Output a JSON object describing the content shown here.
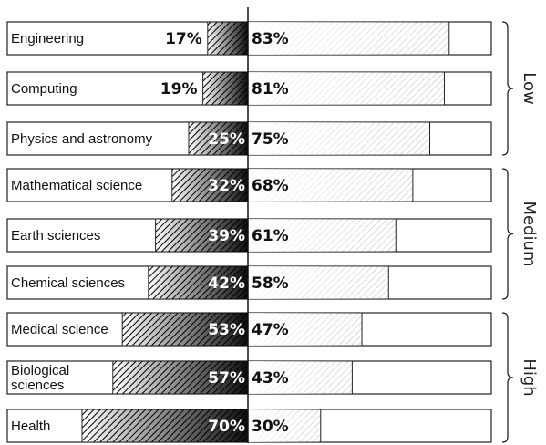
{
  "chart_data": {
    "type": "bar",
    "subtype": "diverging-stacked-horizontal",
    "categories": [
      "Engineering",
      "Computing",
      "Physics and astronomy",
      "Mathematical science",
      "Earth sciences",
      "Chemical sciences",
      "Medical science",
      "Biological sciences",
      "Health"
    ],
    "series": [
      {
        "values": [
          17,
          19,
          25,
          32,
          39,
          42,
          53,
          57,
          70
        ],
        "labels": [
          "17%",
          "19%",
          "25%",
          "32%",
          "39%",
          "42%",
          "53%",
          "57%",
          "70%"
        ]
      },
      {
        "values": [
          83,
          81,
          75,
          68,
          61,
          58,
          47,
          43,
          30
        ],
        "labels": [
          "83%",
          "81%",
          "75%",
          "68%",
          "61%",
          "58%",
          "47%",
          "43%",
          "30%"
        ]
      }
    ],
    "groups": [
      {
        "label": "Low",
        "categories": [
          "Engineering",
          "Computing",
          "Physics and astronomy"
        ]
      },
      {
        "label": "Medium",
        "categories": [
          "Mathematical science",
          "Earth sciences",
          "Chemical sciences"
        ]
      },
      {
        "label": "High",
        "categories": [
          "Medical science",
          "Biological sciences",
          "Health"
        ]
      }
    ],
    "xlim": [
      0,
      100
    ],
    "grid": false,
    "legend": "none",
    "colors": {
      "left_dark": "#000000",
      "right_light": "#bbbbbb",
      "outline": "#222222"
    }
  }
}
